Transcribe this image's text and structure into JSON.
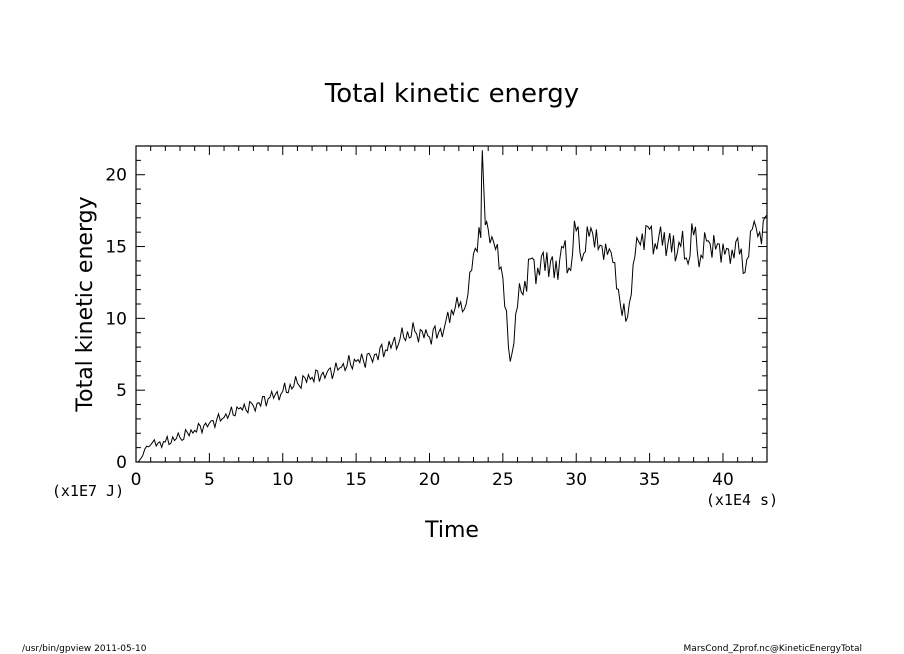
{
  "chart_data": {
    "type": "line",
    "title": "Total kinetic energy",
    "xlabel": "Time",
    "ylabel": "Total kinetic energy",
    "x_unit": "(x1E4 s)",
    "y_unit": "(x1E7 J)",
    "xlim": [
      0,
      43
    ],
    "ylim": [
      0,
      22
    ],
    "x_ticks": [
      0,
      5,
      10,
      15,
      20,
      25,
      30,
      35,
      40
    ],
    "x_tick_labels": [
      "0",
      "5",
      "10",
      "15",
      "20",
      "25",
      "30",
      "35",
      "40"
    ],
    "y_ticks": [
      0,
      5,
      10,
      15,
      20
    ],
    "y_tick_labels": [
      "0",
      "5",
      "10",
      "15",
      "20"
    ],
    "x_minor_step": 1,
    "y_minor_step": 1,
    "grid": false,
    "series": [
      {
        "x": [
          0,
          0.3,
          0.6,
          1,
          2,
          3,
          4,
          5,
          6,
          7,
          8,
          9,
          10,
          11,
          12,
          13,
          14,
          15,
          16,
          17,
          18,
          19,
          20,
          21,
          21.5,
          22,
          22.5,
          23,
          23.5,
          23.6,
          23.8,
          24,
          24.5,
          25,
          25.5,
          26,
          26.5,
          27,
          27.5,
          28,
          28.5,
          29,
          29.5,
          30,
          30.5,
          31,
          31.5,
          32,
          32.5,
          33,
          33.5,
          34,
          34.5,
          35,
          35.5,
          36,
          36.5,
          37,
          37.5,
          38,
          38.5,
          39,
          39.5,
          40,
          40.5,
          41,
          41.5,
          42,
          42.5,
          43
        ],
        "y": [
          0,
          0.2,
          0.9,
          1.2,
          1.4,
          1.7,
          2.2,
          2.7,
          3.1,
          3.7,
          3.9,
          4.4,
          4.9,
          5.5,
          5.9,
          6.2,
          6.6,
          7.0,
          7.3,
          7.8,
          8.6,
          9.1,
          8.7,
          9.3,
          10.6,
          10.8,
          11.0,
          14.5,
          15.6,
          21.7,
          16.5,
          16.2,
          14.8,
          12.8,
          7.0,
          10.8,
          12.6,
          14.2,
          13.0,
          14.6,
          12.8,
          15.0,
          13.5,
          16.1,
          14.5,
          16.3,
          14.8,
          15.2,
          13.9,
          11.0,
          10.1,
          14.3,
          15.9,
          16.2,
          14.8,
          16.0,
          14.6,
          15.3,
          14.2,
          15.8,
          14.4,
          15.4,
          14.8,
          15.2,
          13.8,
          15.6,
          13.2,
          16.2,
          16.0,
          17.2
        ]
      }
    ]
  },
  "footer": {
    "left": "/usr/bin/gpview   2011-05-10",
    "right": "MarsCond_Zprof.nc@KineticEnergyTotal"
  }
}
